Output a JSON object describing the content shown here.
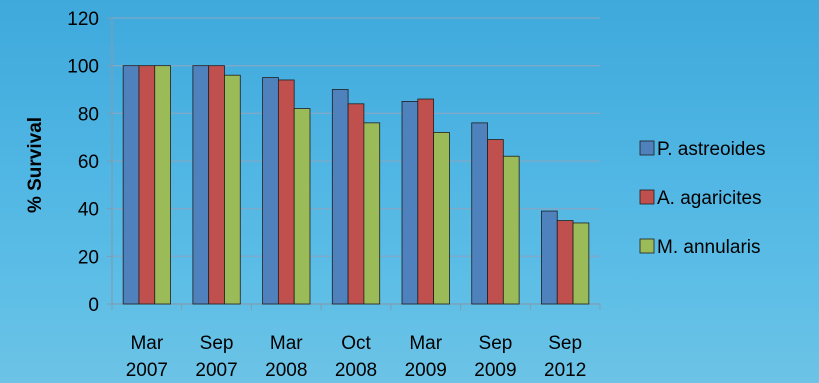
{
  "chart_data": {
    "type": "bar",
    "title": "",
    "xlabel": "",
    "ylabel": "% Survival",
    "ylim": [
      0,
      120
    ],
    "yticks": [
      0,
      20,
      40,
      60,
      80,
      100,
      120
    ],
    "grid": true,
    "legend_position": "right",
    "categories": [
      [
        "Mar",
        "2007"
      ],
      [
        "Sep",
        "2007"
      ],
      [
        "Mar",
        "2008"
      ],
      [
        "Oct",
        "2008"
      ],
      [
        "Mar",
        "2009"
      ],
      [
        "Sep",
        "2009"
      ],
      [
        "Sep",
        "2012"
      ]
    ],
    "series": [
      {
        "name": "P. astreoides",
        "color": "#4f81bd",
        "values": [
          100,
          100,
          95,
          90,
          85,
          76,
          39
        ]
      },
      {
        "name": "A. agaricites",
        "color": "#c0504d",
        "values": [
          100,
          100,
          94,
          84,
          86,
          69,
          35
        ]
      },
      {
        "name": "M. annularis",
        "color": "#9bbb59",
        "values": [
          100,
          96,
          82,
          76,
          72,
          62,
          34
        ]
      }
    ]
  }
}
